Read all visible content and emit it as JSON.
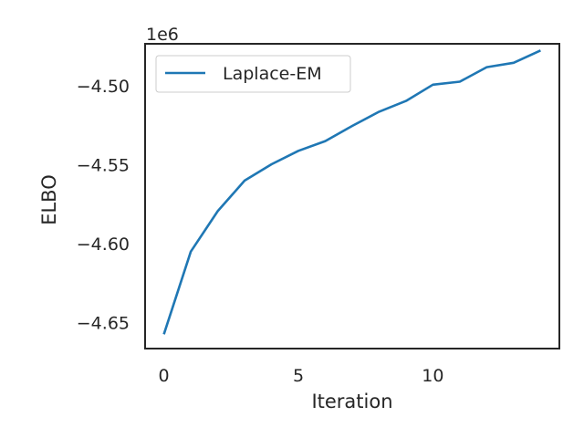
{
  "chart_data": {
    "type": "line",
    "xlabel": "Iteration",
    "ylabel": "ELBO",
    "y_offset_label": "1e6",
    "xlim": [
      -0.7,
      14.7
    ],
    "ylim": [
      -4.6665,
      -4.4735
    ],
    "x_ticks": [
      0,
      5,
      10
    ],
    "x_tick_labels": [
      "0",
      "5",
      "10"
    ],
    "y_ticks": [
      -4.65,
      -4.6,
      -4.55,
      -4.5
    ],
    "y_tick_labels": [
      "−4.65",
      "−4.60",
      "−4.55",
      "−4.50"
    ],
    "grid": false,
    "legend_position": "upper left",
    "series": [
      {
        "name": "Laplace-EM",
        "color": "#1f77b4",
        "x": [
          0,
          1,
          2,
          3,
          4,
          5,
          6,
          7,
          8,
          9,
          10,
          11,
          12,
          13,
          14
        ],
        "y": [
          -4.6574,
          -4.6051,
          -4.5795,
          -4.5601,
          -4.5498,
          -4.5413,
          -4.5351,
          -4.5255,
          -4.5165,
          -4.5097,
          -4.4994,
          -4.4975,
          -4.4883,
          -4.4855,
          -4.4777
        ]
      }
    ]
  }
}
